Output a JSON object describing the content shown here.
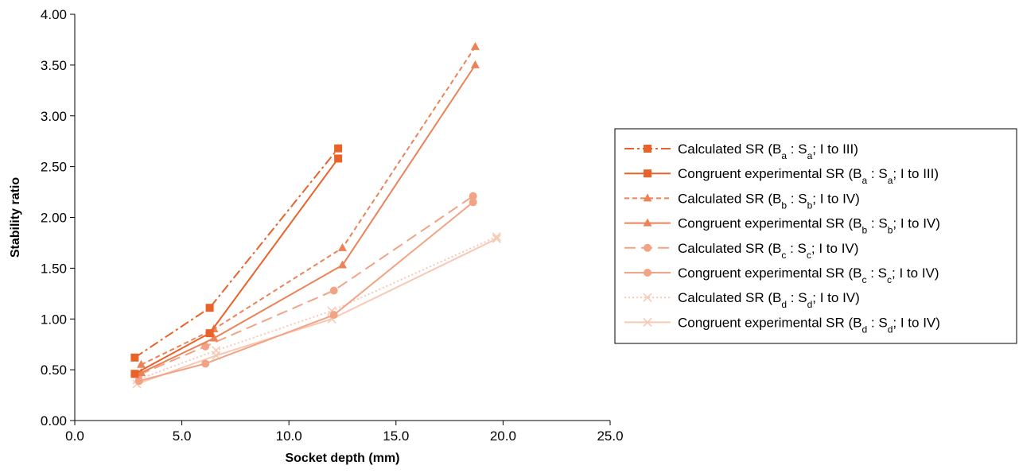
{
  "chart_data": {
    "type": "line",
    "title": "",
    "xlabel": "Socket depth (mm)",
    "ylabel": "Stability ratio",
    "xlim": [
      0,
      25
    ],
    "ylim": [
      0,
      4
    ],
    "x_ticks": [
      "0.0",
      "5.0",
      "10.0",
      "15.0",
      "20.0",
      "25.0"
    ],
    "y_ticks": [
      "0.00",
      "0.50",
      "1.00",
      "1.50",
      "2.00",
      "2.50",
      "3.00",
      "3.50",
      "4.00"
    ],
    "grid": false,
    "legend_position": "right",
    "series": [
      {
        "name": "Calculated SR (Ba : Sa; I to III)",
        "legend": {
          "pre": "Calculated SR (B",
          "s1": "a",
          "mid": " : S",
          "s2": "a",
          "post": "; I to III)"
        },
        "color": "#e8622a",
        "dash": "12,4,3,4",
        "marker": "square",
        "points": [
          [
            2.8,
            0.62
          ],
          [
            6.3,
            1.11
          ],
          [
            12.3,
            2.68
          ]
        ]
      },
      {
        "name": "Congruent experimental SR (Ba : Sa; I to III)",
        "legend": {
          "pre": "Congruent experimental SR (B",
          "s1": "a",
          "mid": " : S",
          "s2": "a",
          "post": "; I to III)"
        },
        "color": "#e8622a",
        "dash": "",
        "marker": "square",
        "points": [
          [
            2.8,
            0.46
          ],
          [
            6.3,
            0.86
          ],
          [
            12.3,
            2.58
          ]
        ]
      },
      {
        "name": "Calculated SR (Bb : Sb; I to IV)",
        "legend": {
          "pre": "Calculated SR (B",
          "s1": "b",
          "mid": " : S",
          "s2": "b",
          "post": "; I to IV)"
        },
        "color": "#ec8258",
        "dash": "6,4",
        "marker": "triangle",
        "points": [
          [
            3.1,
            0.55
          ],
          [
            6.5,
            0.9
          ],
          [
            12.5,
            1.7
          ],
          [
            18.7,
            3.68
          ]
        ]
      },
      {
        "name": "Congruent experimental SR (Bb : Sb; I to IV)",
        "legend": {
          "pre": "Congruent experimental SR (B",
          "s1": "b",
          "mid": " : S",
          "s2": "b",
          "post": "; I to IV)"
        },
        "color": "#ec8258",
        "dash": "",
        "marker": "triangle",
        "points": [
          [
            3.1,
            0.47
          ],
          [
            6.5,
            0.81
          ],
          [
            12.5,
            1.53
          ],
          [
            18.7,
            3.5
          ]
        ]
      },
      {
        "name": "Calculated SR (Bc : Sc; I to IV)",
        "legend": {
          "pre": "Calculated SR (B",
          "s1": "c",
          "mid": " : S",
          "s2": "c",
          "post": "; I to IV)"
        },
        "color": "#f2a384",
        "dash": "14,7",
        "marker": "circle",
        "points": [
          [
            3.0,
            0.45
          ],
          [
            6.1,
            0.73
          ],
          [
            12.1,
            1.28
          ],
          [
            18.6,
            2.21
          ]
        ]
      },
      {
        "name": "Congruent experimental SR (Bc : Sc; I to IV)",
        "legend": {
          "pre": "Congruent experimental SR (B",
          "s1": "c",
          "mid": " : S",
          "s2": "c",
          "post": "; I to IV)"
        },
        "color": "#f2a384",
        "dash": "",
        "marker": "circle",
        "points": [
          [
            3.0,
            0.39
          ],
          [
            6.1,
            0.56
          ],
          [
            12.1,
            1.04
          ],
          [
            18.6,
            2.15
          ]
        ]
      },
      {
        "name": "Calculated SR (Bd : Sd; I to IV)",
        "legend": {
          "pre": "Calculated SR (B",
          "s1": "d",
          "mid": " : S",
          "s2": "d",
          "post": "; I to IV)"
        },
        "color": "#f7c9b5",
        "dash": "2,3",
        "marker": "x",
        "points": [
          [
            2.9,
            0.4
          ],
          [
            6.6,
            0.69
          ],
          [
            12.0,
            1.08
          ],
          [
            19.7,
            1.81
          ]
        ]
      },
      {
        "name": "Congruent experimental SR (Bd : Sd; I to IV)",
        "legend": {
          "pre": "Congruent experimental SR (B",
          "s1": "d",
          "mid": " : S",
          "s2": "d",
          "post": "; I to IV)"
        },
        "color": "#f7c9b5",
        "dash": "",
        "marker": "x",
        "points": [
          [
            2.9,
            0.36
          ],
          [
            6.6,
            0.64
          ],
          [
            12.0,
            1.0
          ],
          [
            19.7,
            1.79
          ]
        ]
      }
    ]
  }
}
